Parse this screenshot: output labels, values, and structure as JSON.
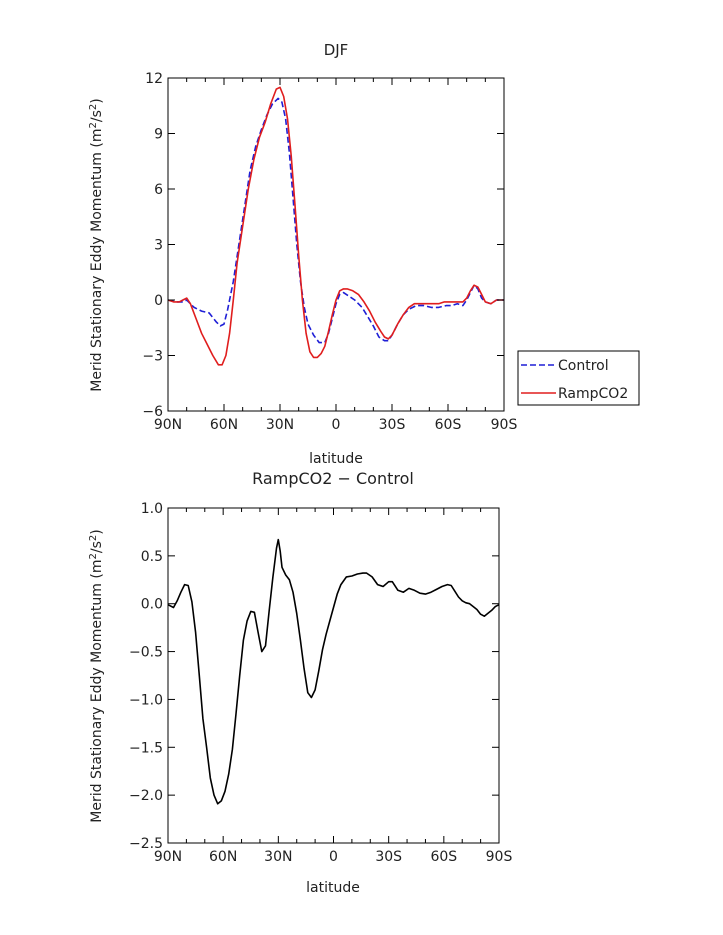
{
  "chart_data": [
    {
      "type": "line",
      "title": "DJF",
      "xlabel": "latitude",
      "ylabel": "Merid Stationary Eddy Momentum (m²/s²)",
      "ylabel_plain": "Merid Stationary Eddy Momentum (m",
      "ylabel_tail": "/s",
      "ylabel_end": ")",
      "sup": "2",
      "xlim": [
        90,
        -90
      ],
      "ylim": [
        -6,
        12
      ],
      "xticks": [
        {
          "v": 90,
          "label": "90N"
        },
        {
          "v": 60,
          "label": "60N"
        },
        {
          "v": 30,
          "label": "30N"
        },
        {
          "v": 0,
          "label": "0"
        },
        {
          "v": -30,
          "label": "30S"
        },
        {
          "v": -60,
          "label": "60S"
        },
        {
          "v": -90,
          "label": "90S"
        }
      ],
      "yticks": [
        {
          "v": -6,
          "label": "−6"
        },
        {
          "v": -3,
          "label": "−3"
        },
        {
          "v": 0,
          "label": "0"
        },
        {
          "v": 3,
          "label": "3"
        },
        {
          "v": 6,
          "label": "6"
        },
        {
          "v": 9,
          "label": "9"
        },
        {
          "v": 12,
          "label": "12"
        }
      ],
      "legend_placement": "right",
      "series": [
        {
          "name": "Control",
          "color": "#1f1fd6",
          "dash": "6,3",
          "points": [
            [
              90,
              0
            ],
            [
              86,
              -0.1
            ],
            [
              82,
              -0.1
            ],
            [
              80,
              0
            ],
            [
              76,
              -0.4
            ],
            [
              72,
              -0.6
            ],
            [
              68,
              -0.7
            ],
            [
              64,
              -1.2
            ],
            [
              62,
              -1.4
            ],
            [
              60,
              -1.3
            ],
            [
              58,
              -0.5
            ],
            [
              55,
              1.0
            ],
            [
              52,
              3.0
            ],
            [
              49,
              5.0
            ],
            [
              46,
              7.0
            ],
            [
              43,
              8.3
            ],
            [
              40,
              9.2
            ],
            [
              37,
              10.0
            ],
            [
              34,
              10.6
            ],
            [
              31,
              10.9
            ],
            [
              29,
              10.7
            ],
            [
              27,
              9.8
            ],
            [
              25,
              8.0
            ],
            [
              23,
              5.5
            ],
            [
              21,
              3.0
            ],
            [
              19,
              1.0
            ],
            [
              17,
              -0.4
            ],
            [
              15,
              -1.3
            ],
            [
              12,
              -1.9
            ],
            [
              9,
              -2.3
            ],
            [
              6,
              -2.3
            ],
            [
              4,
              -1.8
            ],
            [
              2,
              -1.0
            ],
            [
              0,
              -0.2
            ],
            [
              -2,
              0.3
            ],
            [
              -4,
              0.4
            ],
            [
              -7,
              0.2
            ],
            [
              -10,
              0.0
            ],
            [
              -14,
              -0.4
            ],
            [
              -17,
              -0.9
            ],
            [
              -20,
              -1.4
            ],
            [
              -23,
              -2.0
            ],
            [
              -26,
              -2.2
            ],
            [
              -28,
              -2.2
            ],
            [
              -30,
              -1.9
            ],
            [
              -33,
              -1.3
            ],
            [
              -36,
              -0.8
            ],
            [
              -39,
              -0.5
            ],
            [
              -43,
              -0.3
            ],
            [
              -47,
              -0.3
            ],
            [
              -51,
              -0.4
            ],
            [
              -55,
              -0.4
            ],
            [
              -59,
              -0.3
            ],
            [
              -62,
              -0.3
            ],
            [
              -65,
              -0.2
            ],
            [
              -68,
              -0.3
            ],
            [
              -70,
              0.0
            ],
            [
              -72,
              0.4
            ],
            [
              -74,
              0.8
            ],
            [
              -76,
              0.6
            ],
            [
              -78,
              0.1
            ],
            [
              -80,
              -0.1
            ],
            [
              -83,
              -0.2
            ],
            [
              -86,
              0.0
            ],
            [
              -90,
              0.0
            ]
          ]
        },
        {
          "name": "RampCO2",
          "color": "#e01e1e",
          "dash": "",
          "points": [
            [
              90,
              0
            ],
            [
              87,
              -0.1
            ],
            [
              84,
              -0.1
            ],
            [
              82,
              0
            ],
            [
              80,
              0.1
            ],
            [
              78,
              -0.2
            ],
            [
              75,
              -1.0
            ],
            [
              72,
              -1.8
            ],
            [
              69,
              -2.4
            ],
            [
              66,
              -3.0
            ],
            [
              63,
              -3.5
            ],
            [
              61,
              -3.5
            ],
            [
              59,
              -3.0
            ],
            [
              57,
              -1.8
            ],
            [
              55,
              0.0
            ],
            [
              53,
              2.0
            ],
            [
              50,
              4.0
            ],
            [
              47,
              6.0
            ],
            [
              44,
              7.6
            ],
            [
              41,
              8.8
            ],
            [
              38,
              9.6
            ],
            [
              35,
              10.6
            ],
            [
              32,
              11.4
            ],
            [
              30,
              11.5
            ],
            [
              28,
              11.0
            ],
            [
              26,
              9.8
            ],
            [
              24,
              7.8
            ],
            [
              22,
              5.2
            ],
            [
              20,
              2.4
            ],
            [
              18,
              0.0
            ],
            [
              16,
              -1.8
            ],
            [
              14,
              -2.8
            ],
            [
              12,
              -3.1
            ],
            [
              10,
              -3.1
            ],
            [
              8,
              -2.9
            ],
            [
              6,
              -2.5
            ],
            [
              4,
              -1.7
            ],
            [
              2,
              -0.8
            ],
            [
              0,
              0
            ],
            [
              -2,
              0.5
            ],
            [
              -4,
              0.6
            ],
            [
              -6,
              0.6
            ],
            [
              -9,
              0.5
            ],
            [
              -12,
              0.3
            ],
            [
              -15,
              -0.1
            ],
            [
              -18,
              -0.6
            ],
            [
              -21,
              -1.2
            ],
            [
              -24,
              -1.7
            ],
            [
              -26,
              -2.0
            ],
            [
              -28,
              -2.1
            ],
            [
              -30,
              -1.9
            ],
            [
              -33,
              -1.3
            ],
            [
              -36,
              -0.8
            ],
            [
              -39,
              -0.4
            ],
            [
              -42,
              -0.2
            ],
            [
              -46,
              -0.2
            ],
            [
              -50,
              -0.2
            ],
            [
              -55,
              -0.2
            ],
            [
              -58,
              -0.1
            ],
            [
              -62,
              -0.1
            ],
            [
              -65,
              -0.1
            ],
            [
              -68,
              -0.1
            ],
            [
              -70,
              0.1
            ],
            [
              -72,
              0.5
            ],
            [
              -74,
              0.8
            ],
            [
              -76,
              0.7
            ],
            [
              -78,
              0.3
            ],
            [
              -80,
              -0.1
            ],
            [
              -83,
              -0.2
            ],
            [
              -86,
              0.0
            ],
            [
              -90,
              0.0
            ]
          ]
        }
      ]
    },
    {
      "type": "line",
      "title": "RampCO2 − Control",
      "xlabel": "latitude",
      "ylabel": "Merid Stationary Eddy Momentum (m²/s²)",
      "ylabel_plain": "Merid Stationary Eddy Momentum (m",
      "ylabel_tail": "/s",
      "ylabel_end": ")",
      "sup": "2",
      "xlim": [
        90,
        -90
      ],
      "ylim": [
        -2.5,
        1.0
      ],
      "xticks": [
        {
          "v": 90,
          "label": "90N"
        },
        {
          "v": 60,
          "label": "60N"
        },
        {
          "v": 30,
          "label": "30N"
        },
        {
          "v": 0,
          "label": "0"
        },
        {
          "v": -30,
          "label": "30S"
        },
        {
          "v": -60,
          "label": "60S"
        },
        {
          "v": -90,
          "label": "90S"
        }
      ],
      "yticks": [
        {
          "v": -2.5,
          "label": "−2.5"
        },
        {
          "v": -2.0,
          "label": "−2.0"
        },
        {
          "v": -1.5,
          "label": "−1.5"
        },
        {
          "v": -1.0,
          "label": "−1.0"
        },
        {
          "v": -0.5,
          "label": "−0.5"
        },
        {
          "v": 0.0,
          "label": "0.0"
        },
        {
          "v": 0.5,
          "label": "0.5"
        },
        {
          "v": 1.0,
          "label": "1.0"
        }
      ],
      "series": [
        {
          "name": "",
          "color": "#000000",
          "dash": "",
          "points": [
            [
              90,
              -0.01
            ],
            [
              87,
              -0.04
            ],
            [
              85,
              0.03
            ],
            [
              83,
              0.12
            ],
            [
              81,
              0.2
            ],
            [
              79,
              0.19
            ],
            [
              77,
              0.02
            ],
            [
              75,
              -0.3
            ],
            [
              73,
              -0.75
            ],
            [
              71,
              -1.2
            ],
            [
              69,
              -1.5
            ],
            [
              67,
              -1.82
            ],
            [
              65,
              -2.0
            ],
            [
              63,
              -2.09
            ],
            [
              61,
              -2.06
            ],
            [
              59,
              -1.96
            ],
            [
              57,
              -1.78
            ],
            [
              55,
              -1.52
            ],
            [
              53,
              -1.15
            ],
            [
              51,
              -0.75
            ],
            [
              49,
              -0.38
            ],
            [
              47,
              -0.18
            ],
            [
              45,
              -0.08
            ],
            [
              43,
              -0.09
            ],
            [
              41,
              -0.3
            ],
            [
              39,
              -0.5
            ],
            [
              37,
              -0.44
            ],
            [
              35,
              -0.08
            ],
            [
              33,
              0.27
            ],
            [
              31,
              0.58
            ],
            [
              30,
              0.67
            ],
            [
              29,
              0.55
            ],
            [
              28,
              0.38
            ],
            [
              26,
              0.3
            ],
            [
              24,
              0.25
            ],
            [
              22,
              0.12
            ],
            [
              20,
              -0.1
            ],
            [
              18,
              -0.38
            ],
            [
              16,
              -0.68
            ],
            [
              14,
              -0.93
            ],
            [
              12,
              -0.98
            ],
            [
              10,
              -0.9
            ],
            [
              8,
              -0.7
            ],
            [
              6,
              -0.48
            ],
            [
              4,
              -0.32
            ],
            [
              2,
              -0.18
            ],
            [
              0,
              -0.04
            ],
            [
              -2,
              0.1
            ],
            [
              -4,
              0.2
            ],
            [
              -7,
              0.28
            ],
            [
              -10,
              0.29
            ],
            [
              -13,
              0.31
            ],
            [
              -16,
              0.32
            ],
            [
              -18,
              0.32
            ],
            [
              -21,
              0.28
            ],
            [
              -24,
              0.2
            ],
            [
              -27,
              0.18
            ],
            [
              -30,
              0.23
            ],
            [
              -32,
              0.23
            ],
            [
              -35,
              0.14
            ],
            [
              -38,
              0.12
            ],
            [
              -41,
              0.16
            ],
            [
              -44,
              0.14
            ],
            [
              -47,
              0.11
            ],
            [
              -50,
              0.1
            ],
            [
              -53,
              0.12
            ],
            [
              -56,
              0.15
            ],
            [
              -59,
              0.18
            ],
            [
              -62,
              0.2
            ],
            [
              -64,
              0.19
            ],
            [
              -66,
              0.13
            ],
            [
              -68,
              0.07
            ],
            [
              -70,
              0.03
            ],
            [
              -72,
              0.01
            ],
            [
              -74,
              0.0
            ],
            [
              -76,
              -0.03
            ],
            [
              -78,
              -0.06
            ],
            [
              -80,
              -0.11
            ],
            [
              -82,
              -0.13
            ],
            [
              -84,
              -0.1
            ],
            [
              -86,
              -0.07
            ],
            [
              -88,
              -0.03
            ],
            [
              -90,
              -0.01
            ]
          ]
        }
      ]
    }
  ]
}
